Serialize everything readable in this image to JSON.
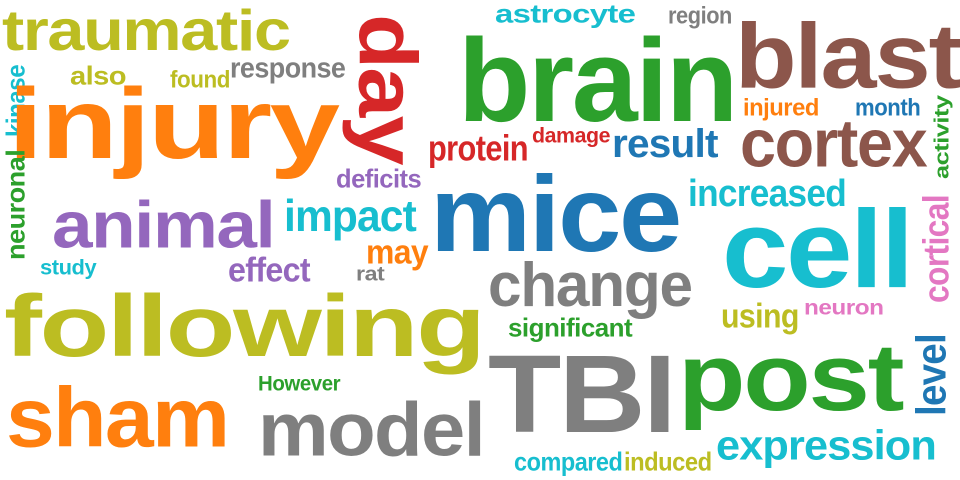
{
  "colors": {
    "olive": "#bcbd22",
    "orange": "#ff7f0e",
    "green": "#2ca02c",
    "red": "#d62728",
    "blue": "#1f77b4",
    "brown": "#8c564b",
    "gray": "#7f7f7f",
    "purple": "#9467bd",
    "cyan": "#17becf",
    "pink": "#e377c2"
  },
  "words": [
    {
      "text": "traumatic",
      "color": "olive"
    },
    {
      "text": "astrocyte",
      "color": "cyan"
    },
    {
      "text": "region",
      "color": "gray"
    },
    {
      "text": "blast",
      "color": "brown"
    },
    {
      "text": "day",
      "color": "red"
    },
    {
      "text": "brain",
      "color": "green"
    },
    {
      "text": "kinase",
      "color": "cyan"
    },
    {
      "text": "also",
      "color": "olive"
    },
    {
      "text": "found",
      "color": "olive"
    },
    {
      "text": "response",
      "color": "gray"
    },
    {
      "text": "injury",
      "color": "orange"
    },
    {
      "text": "injured",
      "color": "orange"
    },
    {
      "text": "month",
      "color": "blue"
    },
    {
      "text": "activity",
      "color": "green"
    },
    {
      "text": "protein",
      "color": "red"
    },
    {
      "text": "damage",
      "color": "red"
    },
    {
      "text": "result",
      "color": "blue"
    },
    {
      "text": "cortex",
      "color": "brown"
    },
    {
      "text": "neuronal",
      "color": "green"
    },
    {
      "text": "deficits",
      "color": "purple"
    },
    {
      "text": "mice",
      "color": "blue"
    },
    {
      "text": "increased",
      "color": "cyan"
    },
    {
      "text": "animal",
      "color": "purple"
    },
    {
      "text": "impact",
      "color": "cyan"
    },
    {
      "text": "cortical",
      "color": "pink"
    },
    {
      "text": "cell",
      "color": "cyan"
    },
    {
      "text": "may",
      "color": "orange"
    },
    {
      "text": "study",
      "color": "cyan"
    },
    {
      "text": "effect",
      "color": "purple"
    },
    {
      "text": "rat",
      "color": "gray"
    },
    {
      "text": "change",
      "color": "gray"
    },
    {
      "text": "neuron",
      "color": "pink"
    },
    {
      "text": "using",
      "color": "olive"
    },
    {
      "text": "following",
      "color": "olive"
    },
    {
      "text": "significant",
      "color": "green"
    },
    {
      "text": "level",
      "color": "blue"
    },
    {
      "text": "post",
      "color": "green"
    },
    {
      "text": "TBI",
      "color": "gray"
    },
    {
      "text": "However",
      "color": "green"
    },
    {
      "text": "sham",
      "color": "orange"
    },
    {
      "text": "model",
      "color": "gray"
    },
    {
      "text": "expression",
      "color": "cyan"
    },
    {
      "text": "compared",
      "color": "cyan"
    },
    {
      "text": "induced",
      "color": "olive"
    }
  ]
}
